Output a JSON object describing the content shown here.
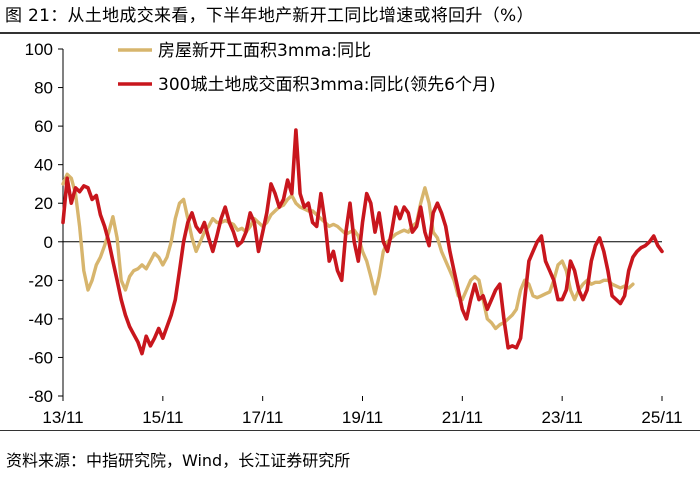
{
  "title": "图 21：从土地成交来看，下半年地产新开工同比增速或将回升（%）",
  "source": "资料来源：中指研究院，Wind，长江证券研究所",
  "colors": {
    "series1": "#D7B56D",
    "series2": "#C8161D",
    "axis": "#000000",
    "rule": "#333333"
  },
  "chart_data": {
    "type": "line",
    "title": "",
    "xlabel": "",
    "ylabel": "",
    "ylim": [
      -80,
      100
    ],
    "yticks": [
      100,
      80,
      60,
      40,
      20,
      0,
      -20,
      -40,
      -60,
      -80
    ],
    "xlim": [
      "2013-11",
      "2025-11"
    ],
    "xticks": [
      "13/11",
      "15/11",
      "17/11",
      "19/11",
      "21/11",
      "23/11",
      "25/11"
    ],
    "grid": false,
    "legend_position": "top-left",
    "series": [
      {
        "name": "房屋新开工面积3mma:同比",
        "color": "#D7B56D",
        "points": [
          [
            "2013-11",
            30
          ],
          [
            "2013-12",
            35
          ],
          [
            "2014-01",
            33
          ],
          [
            "2014-02",
            25
          ],
          [
            "2014-03",
            8
          ],
          [
            "2014-04",
            -15
          ],
          [
            "2014-05",
            -25
          ],
          [
            "2014-06",
            -20
          ],
          [
            "2014-07",
            -12
          ],
          [
            "2014-08",
            -8
          ],
          [
            "2014-09",
            -2
          ],
          [
            "2014-10",
            5
          ],
          [
            "2014-11",
            13
          ],
          [
            "2014-12",
            2
          ],
          [
            "2015-01",
            -20
          ],
          [
            "2015-02",
            -25
          ],
          [
            "2015-03",
            -18
          ],
          [
            "2015-04",
            -15
          ],
          [
            "2015-05",
            -14
          ],
          [
            "2015-06",
            -12
          ],
          [
            "2015-07",
            -14
          ],
          [
            "2015-08",
            -10
          ],
          [
            "2015-09",
            -6
          ],
          [
            "2015-10",
            -8
          ],
          [
            "2015-11",
            -12
          ],
          [
            "2015-12",
            -8
          ],
          [
            "2016-01",
            0
          ],
          [
            "2016-02",
            12
          ],
          [
            "2016-03",
            20
          ],
          [
            "2016-04",
            22
          ],
          [
            "2016-05",
            12
          ],
          [
            "2016-06",
            2
          ],
          [
            "2016-07",
            -5
          ],
          [
            "2016-08",
            0
          ],
          [
            "2016-09",
            5
          ],
          [
            "2016-10",
            8
          ],
          [
            "2016-11",
            12
          ],
          [
            "2016-12",
            10
          ],
          [
            "2017-01",
            10
          ],
          [
            "2017-02",
            11
          ],
          [
            "2017-03",
            10
          ],
          [
            "2017-04",
            9
          ],
          [
            "2017-05",
            6
          ],
          [
            "2017-06",
            7
          ],
          [
            "2017-07",
            5
          ],
          [
            "2017-08",
            8
          ],
          [
            "2017-09",
            12
          ],
          [
            "2017-10",
            10
          ],
          [
            "2017-11",
            8
          ],
          [
            "2017-12",
            10
          ],
          [
            "2018-01",
            14
          ],
          [
            "2018-02",
            16
          ],
          [
            "2018-03",
            18
          ],
          [
            "2018-04",
            19
          ],
          [
            "2018-05",
            22
          ],
          [
            "2018-06",
            24
          ],
          [
            "2018-07",
            20
          ],
          [
            "2018-08",
            18
          ],
          [
            "2018-09",
            17
          ],
          [
            "2018-10",
            16
          ],
          [
            "2018-11",
            16
          ],
          [
            "2018-12",
            14
          ],
          [
            "2019-01",
            12
          ],
          [
            "2019-02",
            10
          ],
          [
            "2019-03",
            8
          ],
          [
            "2019-04",
            9
          ],
          [
            "2019-05",
            8
          ],
          [
            "2019-06",
            6
          ],
          [
            "2019-07",
            4
          ],
          [
            "2019-08",
            5
          ],
          [
            "2019-09",
            6
          ],
          [
            "2019-10",
            3
          ],
          [
            "2019-11",
            -5
          ],
          [
            "2019-12",
            -10
          ],
          [
            "2020-01",
            -18
          ],
          [
            "2020-02",
            -27
          ],
          [
            "2020-03",
            -18
          ],
          [
            "2020-04",
            -5
          ],
          [
            "2020-05",
            0
          ],
          [
            "2020-06",
            2
          ],
          [
            "2020-07",
            4
          ],
          [
            "2020-08",
            5
          ],
          [
            "2020-09",
            6
          ],
          [
            "2020-10",
            5
          ],
          [
            "2020-11",
            8
          ],
          [
            "2020-12",
            10
          ],
          [
            "2021-01",
            20
          ],
          [
            "2021-02",
            28
          ],
          [
            "2021-03",
            20
          ],
          [
            "2021-04",
            5
          ],
          [
            "2021-05",
            2
          ],
          [
            "2021-06",
            -5
          ],
          [
            "2021-07",
            -10
          ],
          [
            "2021-08",
            -15
          ],
          [
            "2021-09",
            -20
          ],
          [
            "2021-10",
            -28
          ],
          [
            "2021-11",
            -30
          ],
          [
            "2021-12",
            -25
          ],
          [
            "2022-01",
            -20
          ],
          [
            "2022-02",
            -18
          ],
          [
            "2022-03",
            -20
          ],
          [
            "2022-04",
            -30
          ],
          [
            "2022-05",
            -40
          ],
          [
            "2022-06",
            -42
          ],
          [
            "2022-07",
            -45
          ],
          [
            "2022-08",
            -43
          ],
          [
            "2022-09",
            -42
          ],
          [
            "2022-10",
            -40
          ],
          [
            "2022-11",
            -38
          ],
          [
            "2022-12",
            -35
          ],
          [
            "2023-01",
            -25
          ],
          [
            "2023-02",
            -20
          ],
          [
            "2023-03",
            -22
          ],
          [
            "2023-04",
            -28
          ],
          [
            "2023-05",
            -29
          ],
          [
            "2023-06",
            -28
          ],
          [
            "2023-07",
            -27
          ],
          [
            "2023-08",
            -26
          ],
          [
            "2023-09",
            -20
          ],
          [
            "2023-10",
            -12
          ],
          [
            "2023-11",
            -10
          ],
          [
            "2023-12",
            -15
          ],
          [
            "2024-01",
            -25
          ],
          [
            "2024-02",
            -30
          ],
          [
            "2024-03",
            -25
          ],
          [
            "2024-04",
            -22
          ],
          [
            "2024-05",
            -20
          ],
          [
            "2024-06",
            -22
          ],
          [
            "2024-07",
            -21
          ],
          [
            "2024-08",
            -21
          ],
          [
            "2024-09",
            -20
          ],
          [
            "2024-10",
            -20
          ],
          [
            "2024-11",
            -22
          ],
          [
            "2024-12",
            -23
          ],
          [
            "2025-01",
            -24
          ],
          [
            "2025-02",
            -23
          ],
          [
            "2025-03",
            -24
          ],
          [
            "2025-04",
            -22
          ]
        ]
      },
      {
        "name": "300城土地成交面积3mma:同比(领先6个月)",
        "color": "#C8161D",
        "points": [
          [
            "2013-11",
            10
          ],
          [
            "2013-12",
            33
          ],
          [
            "2014-01",
            20
          ],
          [
            "2014-02",
            28
          ],
          [
            "2014-03",
            26
          ],
          [
            "2014-04",
            29
          ],
          [
            "2014-05",
            28
          ],
          [
            "2014-06",
            22
          ],
          [
            "2014-07",
            24
          ],
          [
            "2014-08",
            14
          ],
          [
            "2014-09",
            8
          ],
          [
            "2014-10",
            0
          ],
          [
            "2014-11",
            -10
          ],
          [
            "2014-12",
            -20
          ],
          [
            "2015-01",
            -30
          ],
          [
            "2015-02",
            -38
          ],
          [
            "2015-03",
            -44
          ],
          [
            "2015-04",
            -48
          ],
          [
            "2015-05",
            -52
          ],
          [
            "2015-06",
            -58
          ],
          [
            "2015-07",
            -49
          ],
          [
            "2015-08",
            -54
          ],
          [
            "2015-09",
            -50
          ],
          [
            "2015-10",
            -45
          ],
          [
            "2015-11",
            -50
          ],
          [
            "2015-12",
            -44
          ],
          [
            "2016-01",
            -38
          ],
          [
            "2016-02",
            -30
          ],
          [
            "2016-03",
            -15
          ],
          [
            "2016-04",
            0
          ],
          [
            "2016-05",
            10
          ],
          [
            "2016-06",
            15
          ],
          [
            "2016-07",
            8
          ],
          [
            "2016-08",
            5
          ],
          [
            "2016-09",
            10
          ],
          [
            "2016-10",
            2
          ],
          [
            "2016-11",
            -5
          ],
          [
            "2016-12",
            3
          ],
          [
            "2017-01",
            12
          ],
          [
            "2017-02",
            18
          ],
          [
            "2017-03",
            10
          ],
          [
            "2017-04",
            5
          ],
          [
            "2017-05",
            -2
          ],
          [
            "2017-06",
            0
          ],
          [
            "2017-07",
            5
          ],
          [
            "2017-08",
            15
          ],
          [
            "2017-09",
            10
          ],
          [
            "2017-10",
            -5
          ],
          [
            "2017-11",
            5
          ],
          [
            "2017-12",
            15
          ],
          [
            "2018-01",
            30
          ],
          [
            "2018-02",
            25
          ],
          [
            "2018-03",
            18
          ],
          [
            "2018-04",
            22
          ],
          [
            "2018-05",
            32
          ],
          [
            "2018-06",
            25
          ],
          [
            "2018-07",
            58
          ],
          [
            "2018-08",
            25
          ],
          [
            "2018-09",
            18
          ],
          [
            "2018-10",
            20
          ],
          [
            "2018-11",
            10
          ],
          [
            "2018-12",
            8
          ],
          [
            "2019-01",
            25
          ],
          [
            "2019-02",
            10
          ],
          [
            "2019-03",
            -10
          ],
          [
            "2019-04",
            -5
          ],
          [
            "2019-05",
            -15
          ],
          [
            "2019-06",
            -20
          ],
          [
            "2019-07",
            5
          ],
          [
            "2019-08",
            20
          ],
          [
            "2019-09",
            0
          ],
          [
            "2019-10",
            -10
          ],
          [
            "2019-11",
            10
          ],
          [
            "2019-12",
            25
          ],
          [
            "2020-01",
            20
          ],
          [
            "2020-02",
            5
          ],
          [
            "2020-03",
            15
          ],
          [
            "2020-04",
            0
          ],
          [
            "2020-05",
            -5
          ],
          [
            "2020-06",
            5
          ],
          [
            "2020-07",
            18
          ],
          [
            "2020-08",
            12
          ],
          [
            "2020-09",
            18
          ],
          [
            "2020-10",
            15
          ],
          [
            "2020-11",
            5
          ],
          [
            "2020-12",
            8
          ],
          [
            "2021-01",
            18
          ],
          [
            "2021-02",
            5
          ],
          [
            "2021-03",
            -2
          ],
          [
            "2021-04",
            15
          ],
          [
            "2021-05",
            20
          ],
          [
            "2021-06",
            15
          ],
          [
            "2021-07",
            8
          ],
          [
            "2021-08",
            -5
          ],
          [
            "2021-09",
            -15
          ],
          [
            "2021-10",
            -25
          ],
          [
            "2021-11",
            -35
          ],
          [
            "2021-12",
            -40
          ],
          [
            "2022-01",
            -30
          ],
          [
            "2022-02",
            -22
          ],
          [
            "2022-03",
            -30
          ],
          [
            "2022-04",
            -28
          ],
          [
            "2022-05",
            -35
          ],
          [
            "2022-06",
            -30
          ],
          [
            "2022-07",
            -25
          ],
          [
            "2022-08",
            -22
          ],
          [
            "2022-09",
            -40
          ],
          [
            "2022-10",
            -55
          ],
          [
            "2022-11",
            -54
          ],
          [
            "2022-12",
            -55
          ],
          [
            "2023-01",
            -50
          ],
          [
            "2023-02",
            -30
          ],
          [
            "2023-03",
            -10
          ],
          [
            "2023-04",
            -5
          ],
          [
            "2023-05",
            0
          ],
          [
            "2023-06",
            3
          ],
          [
            "2023-07",
            -10
          ],
          [
            "2023-08",
            -15
          ],
          [
            "2023-09",
            -20
          ],
          [
            "2023-10",
            -30
          ],
          [
            "2023-11",
            -30
          ],
          [
            "2023-12",
            -25
          ],
          [
            "2024-01",
            -10
          ],
          [
            "2024-02",
            -15
          ],
          [
            "2024-03",
            -25
          ],
          [
            "2024-04",
            -30
          ],
          [
            "2024-05",
            -25
          ],
          [
            "2024-06",
            -10
          ],
          [
            "2024-07",
            -2
          ],
          [
            "2024-08",
            2
          ],
          [
            "2024-09",
            -5
          ],
          [
            "2024-10",
            -15
          ],
          [
            "2024-11",
            -28
          ],
          [
            "2024-12",
            -30
          ],
          [
            "2025-01",
            -32
          ],
          [
            "2025-02",
            -28
          ],
          [
            "2025-03",
            -15
          ],
          [
            "2025-04",
            -8
          ],
          [
            "2025-05",
            -5
          ],
          [
            "2025-06",
            -3
          ],
          [
            "2025-07",
            -2
          ],
          [
            "2025-08",
            0
          ],
          [
            "2025-09",
            3
          ],
          [
            "2025-10",
            -2
          ],
          [
            "2025-11",
            -5
          ]
        ]
      }
    ]
  }
}
